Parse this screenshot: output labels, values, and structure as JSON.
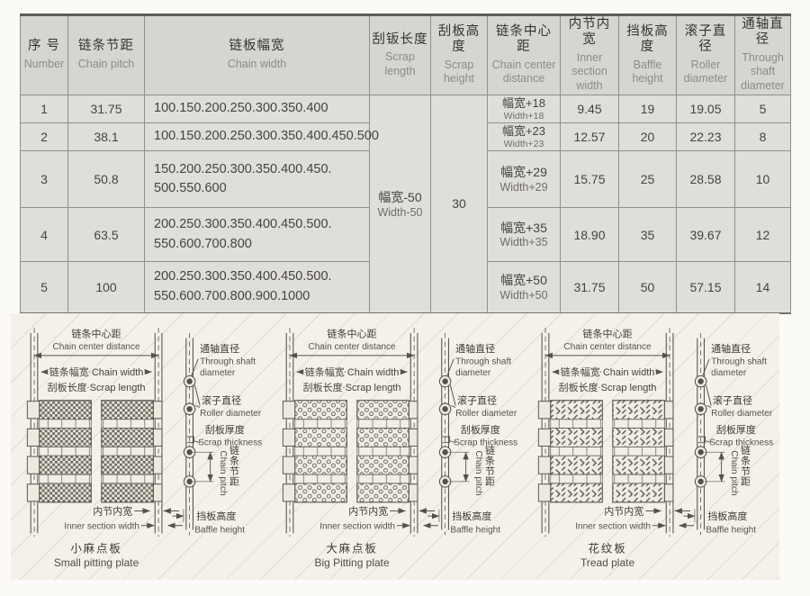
{
  "colors": {
    "table_header_bg": "#d7d5d2",
    "table_body_bg": "#e0deda",
    "table_border": "#8f8d89",
    "panel_bg": "#f4f1e9",
    "diagram_line": "#55524a"
  },
  "table": {
    "headers": [
      {
        "cn": "序 号",
        "en": "Number"
      },
      {
        "cn": "链条节距",
        "en": "Chain pitch"
      },
      {
        "cn": "链板幅宽",
        "en": "Chain width"
      },
      {
        "cn": "刮钣长度",
        "en": "Scrap length"
      },
      {
        "cn": "刮板高度",
        "en": "Scrap height"
      },
      {
        "cn": "链条中心距",
        "en": "Chain center distance"
      },
      {
        "cn": "内节内宽",
        "en": "Inner section width"
      },
      {
        "cn": "挡板高度",
        "en": "Baffle height"
      },
      {
        "cn": "滚子直径",
        "en": "Roller diameter"
      },
      {
        "cn": "通轴直径",
        "en": "Through shaft diameter"
      }
    ],
    "merged": {
      "scrap_length_cn": "幅宽-50",
      "scrap_length_en": "Width-50",
      "scrap_height": "30"
    },
    "rows": [
      {
        "number": "1",
        "pitch": "31.75",
        "width_lines": [
          "100.150.200.250.300.350.400"
        ],
        "center_cn": "幅宽+18",
        "center_en": "Width+18",
        "inner": "9.45",
        "baffle": "19",
        "roller": "19.05",
        "shaft": "5"
      },
      {
        "number": "2",
        "pitch": "38.1",
        "width_lines": [
          "100.150.200.250.300.350.400.450.500"
        ],
        "center_cn": "幅宽+23",
        "center_en": "Width+23",
        "inner": "12.57",
        "baffle": "20",
        "roller": "22.23",
        "shaft": "8"
      },
      {
        "number": "3",
        "pitch": "50.8",
        "width_lines": [
          "150.200.250.300.350.400.450.",
          "500.550.600"
        ],
        "center_cn": "幅宽+29",
        "center_en": "Width+29",
        "inner": "15.75",
        "baffle": "25",
        "roller": "28.58",
        "shaft": "10"
      },
      {
        "number": "4",
        "pitch": "63.5",
        "width_lines": [
          "200.250.300.350.400.450.500.",
          "550.600.700.800"
        ],
        "center_cn": "幅宽+35",
        "center_en": "Width+35",
        "inner": "18.90",
        "baffle": "35",
        "roller": "39.67",
        "shaft": "12"
      },
      {
        "number": "5",
        "pitch": "100",
        "width_lines": [
          "200.250.300.350.400.450.500.",
          "550.600.700.800.900.1000"
        ],
        "center_cn": "幅宽+50",
        "center_en": "Width+50",
        "inner": "31.75",
        "baffle": "50",
        "roller": "57.15",
        "shaft": "14"
      }
    ]
  },
  "diagrams": {
    "labels": {
      "chain_center_cn": "链条中心距",
      "chain_center_en": "Chain center distance",
      "chain_width": "链条幅宽 Chain width",
      "scrap_length": "刮板长度 Scrap length",
      "through_shaft_cn": "通轴直径",
      "through_shaft_en1": "Through shaft",
      "through_shaft_en2": "diameter",
      "roller_cn": "滚子直径",
      "roller_en": "Roller diameter",
      "scrap_thickness_cn": "刮板厚度",
      "scrap_thickness_en": "Scrap thickness",
      "chain_pitch_en": "Chain pitch",
      "chain_pitch_cn_chars": [
        "链",
        "条",
        "节",
        "距"
      ],
      "inner_cn": "内节内宽",
      "inner_en": "Inner section width",
      "baffle_cn": "挡板高度",
      "baffle_en": "Baffle height"
    },
    "items": [
      {
        "caption_cn": "小麻点板",
        "caption_en": "Small pitting plate",
        "pattern": "smallpit"
      },
      {
        "caption_cn": "大麻点板",
        "caption_en": "Big Pitting plate",
        "pattern": "bigpit"
      },
      {
        "caption_cn": "花纹板",
        "caption_en": "Tread plate",
        "pattern": "tread"
      }
    ]
  }
}
